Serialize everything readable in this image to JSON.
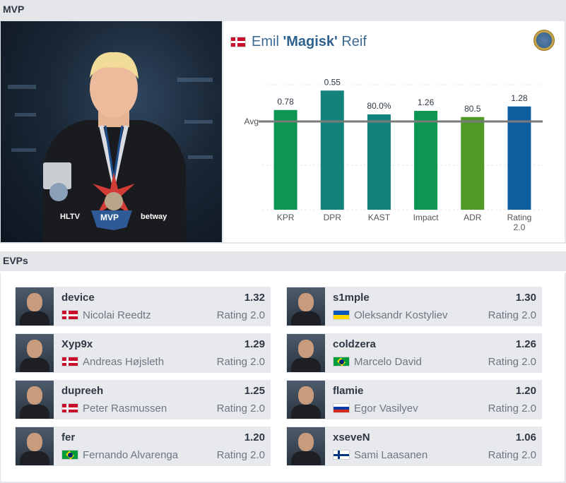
{
  "mvp": {
    "header": "MVP",
    "first_name": "Emil ",
    "nickname": "'Magisk'",
    "last_name": " Reif",
    "flag": "dk",
    "photo_badges": {
      "hltv": "HLTV",
      "mvp": "MVP",
      "sponsor": "betway"
    },
    "chart_data": {
      "type": "bar",
      "avg_label": "Avg",
      "categories": [
        "KPR",
        "DPR",
        "KAST",
        "Impact",
        "ADR",
        "Rating 2.0"
      ],
      "value_labels": [
        "0.78",
        "0.55",
        "80.0%",
        "1.26",
        "80.5",
        "1.28"
      ],
      "values": [
        0.78,
        0.55,
        80.0,
        1.26,
        80.5,
        1.28
      ],
      "relative_to_avg": [
        1.13,
        1.35,
        1.08,
        1.12,
        1.05,
        1.17
      ],
      "colors": [
        "#0d9653",
        "#13817c",
        "#13817c",
        "#0d9653",
        "#4f9a26",
        "#0f5fa0"
      ],
      "grid": true
    }
  },
  "evps": {
    "header": "EVPs",
    "stat_label": "Rating 2.0",
    "players": [
      {
        "nick": "device",
        "name": "Nicolai Reedtz",
        "value": "1.32",
        "flag": "dk"
      },
      {
        "nick": "s1mple",
        "name": "Oleksandr Kostyliev",
        "value": "1.30",
        "flag": "ua"
      },
      {
        "nick": "Xyp9x",
        "name": "Andreas Højsleth",
        "value": "1.29",
        "flag": "dk"
      },
      {
        "nick": "coldzera",
        "name": "Marcelo David",
        "value": "1.26",
        "flag": "br"
      },
      {
        "nick": "dupreeh",
        "name": "Peter Rasmussen",
        "value": "1.25",
        "flag": "dk"
      },
      {
        "nick": "flamie",
        "name": "Egor Vasilyev",
        "value": "1.20",
        "flag": "ru"
      },
      {
        "nick": "fer",
        "name": "Fernando Alvarenga",
        "value": "1.20",
        "flag": "br"
      },
      {
        "nick": "xseveN",
        "name": "Sami Laasanen",
        "value": "1.06",
        "flag": "fi"
      }
    ]
  }
}
